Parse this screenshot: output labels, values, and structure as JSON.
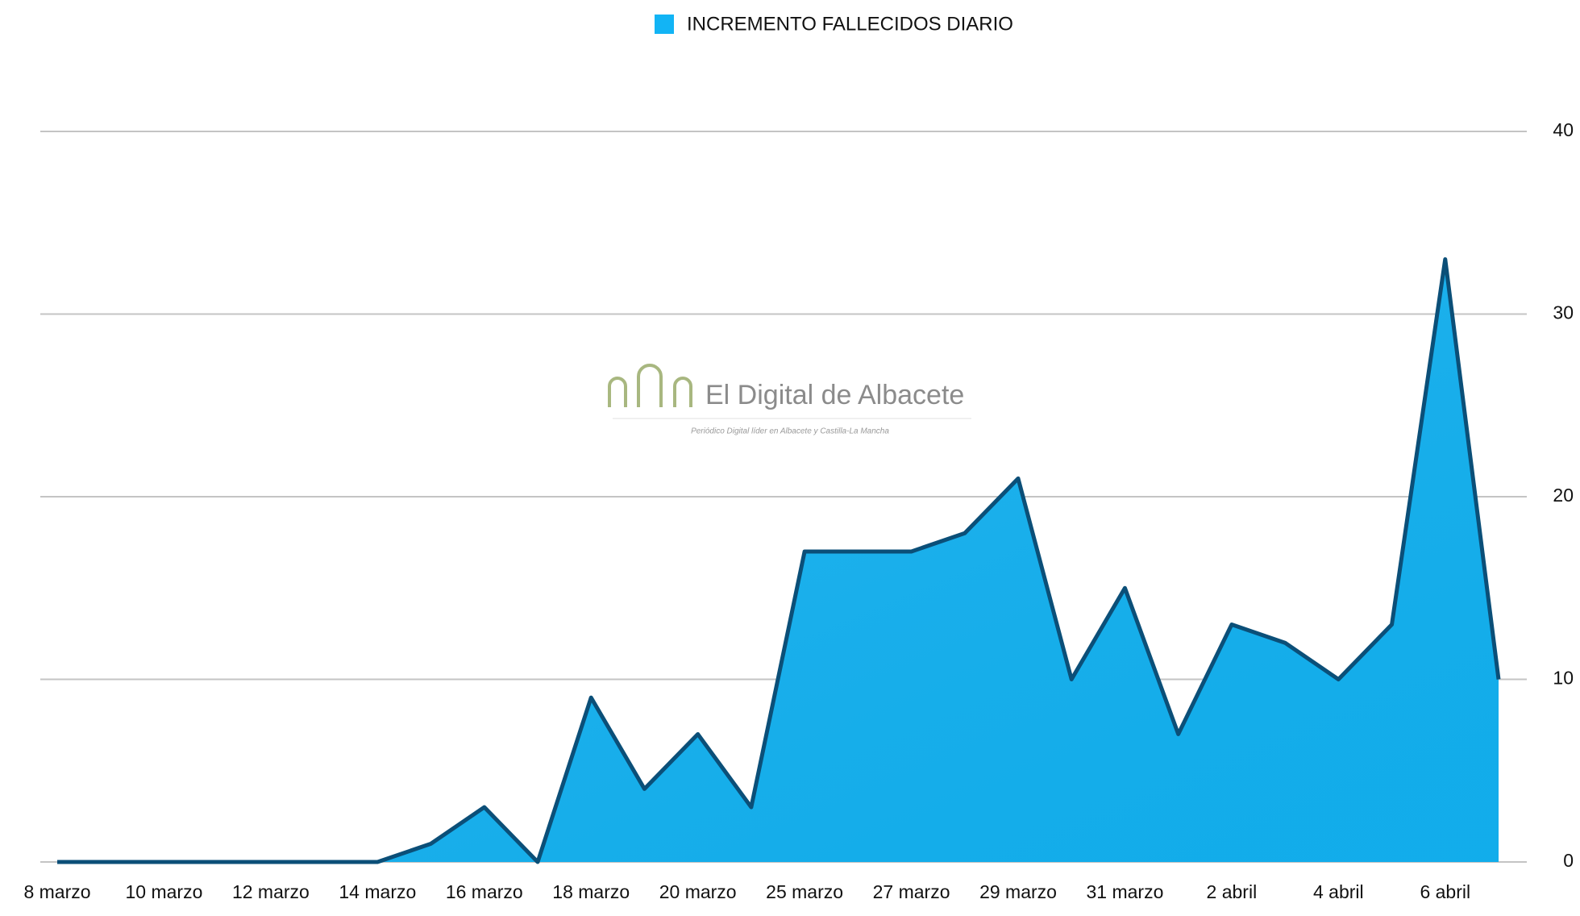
{
  "chart_data": {
    "type": "area",
    "legend_position": "top",
    "watermark": {
      "title": "El Digital de Albacete",
      "subtitle": "Periódico Digital líder en Albacete y Castilla-La Mancha"
    },
    "categories": [
      "8 marzo",
      null,
      "10 marzo",
      null,
      "12 marzo",
      null,
      "14 marzo",
      null,
      "16 marzo",
      null,
      "18 marzo",
      null,
      "20 marzo",
      null,
      "25 marzo",
      null,
      "27 marzo",
      null,
      "29 marzo",
      null,
      "31 marzo",
      null,
      "2 abril",
      null,
      "4 abril",
      null,
      "6 abril",
      null
    ],
    "series": [
      {
        "name": "INCREMENTO FALLECIDOS DIARIO",
        "color": "#12b4f5",
        "values": [
          0,
          0,
          0,
          0,
          0,
          0,
          0,
          1,
          3,
          0,
          9,
          4,
          7,
          3,
          17,
          17,
          17,
          18,
          21,
          10,
          15,
          7,
          13,
          12,
          10,
          13,
          33,
          10
        ]
      }
    ],
    "ylim": [
      0,
      40
    ],
    "yticks": [
      0,
      10,
      20,
      30,
      40
    ],
    "grid": true,
    "y_axis_side": "right"
  }
}
